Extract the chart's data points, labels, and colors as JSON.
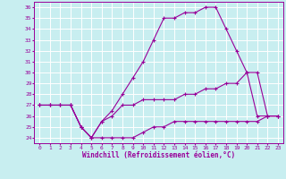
{
  "xlabel": "Windchill (Refroidissement éolien,°C)",
  "bg_color": "#c8eef0",
  "line_color": "#990099",
  "xlim": [
    -0.5,
    23.5
  ],
  "ylim": [
    23.5,
    36.5
  ],
  "yticks": [
    24,
    25,
    26,
    27,
    28,
    29,
    30,
    31,
    32,
    33,
    34,
    35,
    36
  ],
  "xticks": [
    0,
    1,
    2,
    3,
    4,
    5,
    6,
    7,
    8,
    9,
    10,
    11,
    12,
    13,
    14,
    15,
    16,
    17,
    18,
    19,
    20,
    21,
    22,
    23
  ],
  "series1_x": [
    0,
    1,
    2,
    3,
    4,
    5,
    6,
    7,
    8,
    9,
    10,
    11,
    12,
    13,
    14,
    15,
    16,
    17,
    18,
    19,
    20,
    21,
    22,
    23
  ],
  "series1_y": [
    27.0,
    27.0,
    27.0,
    27.0,
    25.0,
    24.0,
    24.0,
    24.0,
    24.0,
    24.0,
    24.5,
    25.0,
    25.0,
    25.5,
    25.5,
    25.5,
    25.5,
    25.5,
    25.5,
    25.5,
    25.5,
    25.5,
    26.0,
    26.0
  ],
  "series2_x": [
    0,
    1,
    2,
    3,
    4,
    5,
    6,
    7,
    8,
    9,
    10,
    11,
    12,
    13,
    14,
    15,
    16,
    17,
    18,
    19,
    20,
    21,
    22,
    23
  ],
  "series2_y": [
    27.0,
    27.0,
    27.0,
    27.0,
    25.0,
    24.0,
    25.5,
    26.0,
    27.0,
    27.0,
    27.5,
    27.5,
    27.5,
    27.5,
    28.0,
    28.0,
    28.5,
    28.5,
    29.0,
    29.0,
    30.0,
    30.0,
    26.0,
    26.0
  ],
  "series3_x": [
    0,
    1,
    2,
    3,
    4,
    5,
    6,
    7,
    8,
    9,
    10,
    11,
    12,
    13,
    14,
    15,
    16,
    17,
    18,
    19,
    20,
    21,
    22,
    23
  ],
  "series3_y": [
    27.0,
    27.0,
    27.0,
    27.0,
    25.0,
    24.0,
    25.5,
    26.5,
    28.0,
    29.5,
    31.0,
    33.0,
    35.0,
    35.0,
    35.5,
    35.5,
    36.0,
    36.0,
    34.0,
    32.0,
    30.0,
    26.0,
    26.0,
    26.0
  ],
  "grid_color": "#ffffff",
  "marker": "+",
  "markersize": 3,
  "linewidth": 0.8,
  "tick_fontsize": 4.5,
  "label_fontsize": 5.5
}
